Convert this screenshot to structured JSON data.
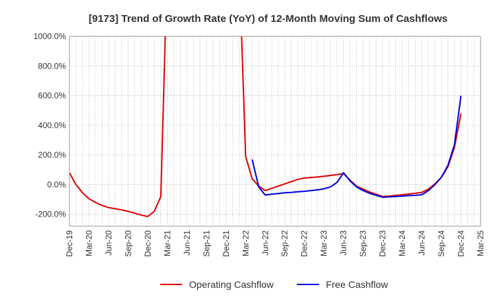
{
  "chart_data": {
    "type": "line",
    "title": "[9173]  Trend of Growth Rate (YoY) of 12-Month Moving Sum of Cashflows",
    "xlabel": "",
    "ylabel": "",
    "ylim": [
      -280,
      1000
    ],
    "xlim": [
      "2019-12",
      "2025-03"
    ],
    "yticks": [
      -200,
      0,
      200,
      400,
      600,
      800,
      1000
    ],
    "ytick_labels": [
      "-200.0%",
      "0.0%",
      "200.0%",
      "400.0%",
      "600.0%",
      "800.0%",
      "1000.0%"
    ],
    "xtick_labels": [
      "Dec-19",
      "Mar-20",
      "Jun-20",
      "Sep-20",
      "Dec-20",
      "Mar-21",
      "Jun-21",
      "Sep-21",
      "Dec-21",
      "Mar-22",
      "Jun-22",
      "Sep-22",
      "Dec-22",
      "Mar-23",
      "Jun-23",
      "Sep-23",
      "Dec-23",
      "Mar-24",
      "Jun-24",
      "Sep-24",
      "Dec-24",
      "Mar-25"
    ],
    "grid": true,
    "legend_position": "bottom",
    "series": [
      {
        "name": "Operating Cashflow",
        "color": "#dd0000",
        "points": [
          [
            "2019-12",
            80
          ],
          [
            "2020-01",
            0
          ],
          [
            "2020-02",
            -55
          ],
          [
            "2020-03",
            -95
          ],
          [
            "2020-04",
            -120
          ],
          [
            "2020-05",
            -140
          ],
          [
            "2020-06",
            -155
          ],
          [
            "2020-07",
            -162
          ],
          [
            "2020-08",
            -170
          ],
          [
            "2020-09",
            -180
          ],
          [
            "2020-10",
            -192
          ],
          [
            "2020-11",
            -205
          ],
          [
            "2020-12",
            -215
          ],
          [
            "2021-01",
            -180
          ],
          [
            "2021-02",
            -80
          ],
          [
            "2021-03",
            1500
          ],
          [
            "2022-02",
            1500
          ],
          [
            "2022-03",
            190
          ],
          [
            "2022-04",
            40
          ],
          [
            "2022-05",
            -10
          ],
          [
            "2022-06",
            -40
          ],
          [
            "2022-07",
            -25
          ],
          [
            "2022-08",
            -10
          ],
          [
            "2022-09",
            5
          ],
          [
            "2022-10",
            20
          ],
          [
            "2022-11",
            35
          ],
          [
            "2022-12",
            45
          ],
          [
            "2023-01",
            48
          ],
          [
            "2023-02",
            52
          ],
          [
            "2023-03",
            57
          ],
          [
            "2023-04",
            62
          ],
          [
            "2023-05",
            68
          ],
          [
            "2023-06",
            75
          ],
          [
            "2023-07",
            30
          ],
          [
            "2023-08",
            -10
          ],
          [
            "2023-09",
            -30
          ],
          [
            "2023-10",
            -50
          ],
          [
            "2023-11",
            -65
          ],
          [
            "2023-12",
            -80
          ],
          [
            "2024-01",
            -78
          ],
          [
            "2024-02",
            -72
          ],
          [
            "2024-03",
            -68
          ],
          [
            "2024-04",
            -63
          ],
          [
            "2024-05",
            -58
          ],
          [
            "2024-06",
            -52
          ],
          [
            "2024-07",
            -30
          ],
          [
            "2024-08",
            5
          ],
          [
            "2024-09",
            50
          ],
          [
            "2024-10",
            120
          ],
          [
            "2024-11",
            250
          ],
          [
            "2024-12",
            480
          ]
        ]
      },
      {
        "name": "Free Cashflow",
        "color": "#0000dd",
        "points": [
          [
            "2022-04",
            170
          ],
          [
            "2022-05",
            -15
          ],
          [
            "2022-06",
            -70
          ],
          [
            "2022-07",
            -64
          ],
          [
            "2022-08",
            -60
          ],
          [
            "2022-09",
            -55
          ],
          [
            "2022-10",
            -52
          ],
          [
            "2022-11",
            -48
          ],
          [
            "2022-12",
            -45
          ],
          [
            "2023-01",
            -40
          ],
          [
            "2023-02",
            -35
          ],
          [
            "2023-03",
            -28
          ],
          [
            "2023-04",
            -15
          ],
          [
            "2023-05",
            15
          ],
          [
            "2023-06",
            80
          ],
          [
            "2023-07",
            25
          ],
          [
            "2023-08",
            -15
          ],
          [
            "2023-09",
            -40
          ],
          [
            "2023-10",
            -58
          ],
          [
            "2023-11",
            -72
          ],
          [
            "2023-12",
            -85
          ],
          [
            "2024-01",
            -82
          ],
          [
            "2024-02",
            -80
          ],
          [
            "2024-03",
            -77
          ],
          [
            "2024-04",
            -74
          ],
          [
            "2024-05",
            -72
          ],
          [
            "2024-06",
            -68
          ],
          [
            "2024-07",
            -40
          ],
          [
            "2024-08",
            0
          ],
          [
            "2024-09",
            50
          ],
          [
            "2024-10",
            130
          ],
          [
            "2024-11",
            270
          ],
          [
            "2024-12",
            600
          ]
        ]
      }
    ]
  }
}
